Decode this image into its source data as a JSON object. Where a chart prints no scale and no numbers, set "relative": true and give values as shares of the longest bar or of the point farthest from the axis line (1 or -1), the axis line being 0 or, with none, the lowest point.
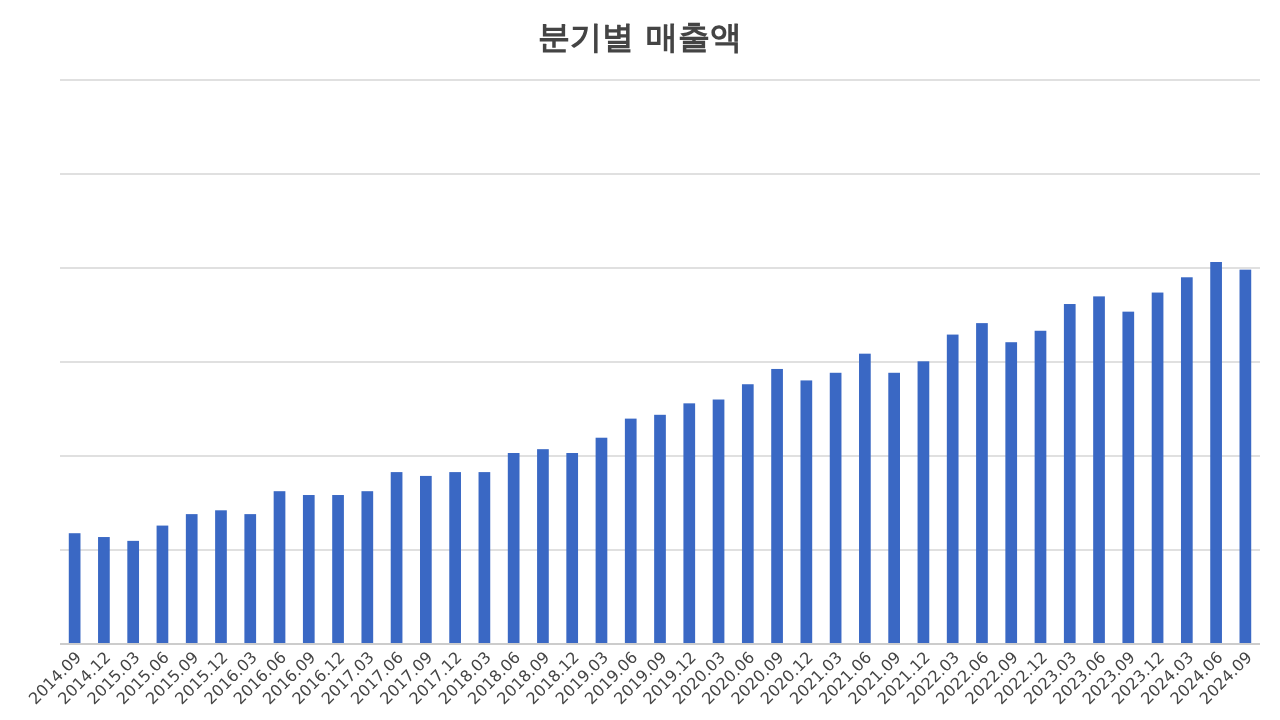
{
  "chart_data": {
    "type": "bar",
    "title": "분기별 매출액",
    "relative": true,
    "grid": true,
    "color": "#3a68c4",
    "categories": [
      "2014.09",
      "2014.12",
      "2015.03",
      "2015.06",
      "2015.09",
      "2015.12",
      "2016.03",
      "2016.06",
      "2016.09",
      "2016.12",
      "2017.03",
      "2017.06",
      "2017.09",
      "2017.12",
      "2018.03",
      "2018.06",
      "2018.09",
      "2018.12",
      "2019.03",
      "2019.06",
      "2019.09",
      "2019.12",
      "2020.03",
      "2020.06",
      "2020.09",
      "2020.12",
      "2021.03",
      "2021.06",
      "2021.09",
      "2021.12",
      "2022.03",
      "2022.06",
      "2022.09",
      "2022.12",
      "2023.03",
      "2023.06",
      "2023.09",
      "2023.12",
      "2024.03",
      "2024.06",
      "2024.09"
    ],
    "values": [
      0.29,
      0.28,
      0.27,
      0.31,
      0.34,
      0.35,
      0.34,
      0.4,
      0.39,
      0.39,
      0.4,
      0.45,
      0.44,
      0.45,
      0.45,
      0.5,
      0.51,
      0.5,
      0.54,
      0.59,
      0.6,
      0.63,
      0.64,
      0.68,
      0.72,
      0.69,
      0.71,
      0.76,
      0.71,
      0.74,
      0.81,
      0.84,
      0.79,
      0.82,
      0.89,
      0.91,
      0.87,
      0.92,
      0.96,
      1,
      0.98
    ]
  }
}
